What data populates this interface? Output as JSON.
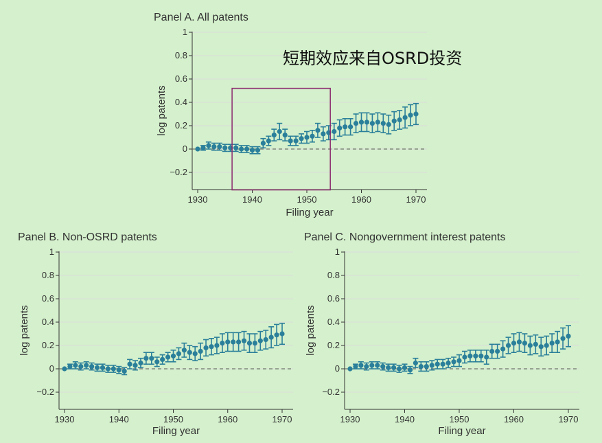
{
  "annotation": {
    "text": "短期效应来自OSRD投资"
  },
  "colors": {
    "marker": "#2a7f9a",
    "background": "#d4f0cc",
    "highlight": "#8b2a6e",
    "grid": "#dcdcdc",
    "refline": "#555555"
  },
  "chart_data": [
    {
      "type": "scatter",
      "title": "Panel A. All patents",
      "xlabel": "Filing year",
      "ylabel": "log patents",
      "xlim": [
        1930,
        1970
      ],
      "ylim": [
        -0.2,
        1
      ],
      "xticks": [
        1930,
        1940,
        1950,
        1960,
        1970
      ],
      "yticks": [
        -0.2,
        0,
        0.2,
        0.4,
        0.6,
        0.8,
        1
      ],
      "ytick_labels": [
        "−0.2",
        "0",
        "0.2",
        "0.4",
        "0.6",
        "0.8",
        "1"
      ],
      "reference_line_y": 0,
      "grid": true,
      "highlight_box": {
        "x_range": [
          1936.3,
          1954.3
        ],
        "y_range": [
          -0.35,
          0.52
        ]
      },
      "x": [
        1930,
        1931,
        1932,
        1933,
        1934,
        1935,
        1936,
        1937,
        1938,
        1939,
        1940,
        1941,
        1942,
        1943,
        1944,
        1945,
        1946,
        1947,
        1948,
        1949,
        1950,
        1951,
        1952,
        1953,
        1954,
        1955,
        1956,
        1957,
        1958,
        1959,
        1960,
        1961,
        1962,
        1963,
        1964,
        1965,
        1966,
        1967,
        1968,
        1969,
        1970
      ],
      "y": [
        0,
        0.01,
        0.03,
        0.02,
        0.02,
        0.01,
        0.01,
        0.01,
        0,
        0,
        -0.01,
        -0.01,
        0.05,
        0.07,
        0.12,
        0.15,
        0.12,
        0.07,
        0.07,
        0.09,
        0.1,
        0.11,
        0.16,
        0.13,
        0.14,
        0.15,
        0.18,
        0.19,
        0.19,
        0.22,
        0.23,
        0.23,
        0.22,
        0.23,
        0.22,
        0.21,
        0.24,
        0.25,
        0.27,
        0.29,
        0.3
      ],
      "err": [
        0,
        0.02,
        0.03,
        0.03,
        0.03,
        0.03,
        0.03,
        0.03,
        0.03,
        0.03,
        0.03,
        0.03,
        0.04,
        0.04,
        0.05,
        0.07,
        0.05,
        0.04,
        0.04,
        0.04,
        0.05,
        0.05,
        0.06,
        0.06,
        0.06,
        0.07,
        0.07,
        0.07,
        0.07,
        0.08,
        0.08,
        0.08,
        0.08,
        0.08,
        0.08,
        0.08,
        0.08,
        0.08,
        0.09,
        0.09,
        0.09
      ]
    },
    {
      "type": "scatter",
      "title": "Panel B. Non-OSRD patents",
      "xlabel": "Filing year",
      "ylabel": "log patents",
      "xlim": [
        1930,
        1970
      ],
      "ylim": [
        -0.2,
        1
      ],
      "xticks": [
        1930,
        1940,
        1950,
        1960,
        1970
      ],
      "yticks": [
        -0.2,
        0,
        0.2,
        0.4,
        0.6,
        0.8,
        1
      ],
      "ytick_labels": [
        "−0.2",
        "0",
        "0.2",
        "0.4",
        "0.6",
        "0.8",
        "1"
      ],
      "reference_line_y": 0,
      "grid": true,
      "x": [
        1930,
        1931,
        1932,
        1933,
        1934,
        1935,
        1936,
        1937,
        1938,
        1939,
        1940,
        1941,
        1942,
        1943,
        1944,
        1945,
        1946,
        1947,
        1948,
        1949,
        1950,
        1951,
        1952,
        1953,
        1954,
        1955,
        1956,
        1957,
        1958,
        1959,
        1960,
        1961,
        1962,
        1963,
        1964,
        1965,
        1966,
        1967,
        1968,
        1969,
        1970
      ],
      "y": [
        0,
        0.02,
        0.03,
        0.02,
        0.03,
        0.02,
        0.01,
        0.01,
        0,
        0,
        -0.01,
        -0.02,
        0.04,
        0.03,
        0.05,
        0.09,
        0.09,
        0.06,
        0.08,
        0.1,
        0.11,
        0.13,
        0.16,
        0.14,
        0.13,
        0.15,
        0.18,
        0.19,
        0.2,
        0.22,
        0.23,
        0.23,
        0.23,
        0.24,
        0.22,
        0.22,
        0.24,
        0.25,
        0.27,
        0.29,
        0.3
      ],
      "err": [
        0,
        0.02,
        0.03,
        0.03,
        0.03,
        0.03,
        0.03,
        0.03,
        0.03,
        0.03,
        0.03,
        0.03,
        0.04,
        0.04,
        0.04,
        0.05,
        0.05,
        0.04,
        0.04,
        0.04,
        0.05,
        0.05,
        0.06,
        0.06,
        0.06,
        0.07,
        0.07,
        0.07,
        0.07,
        0.08,
        0.08,
        0.08,
        0.08,
        0.08,
        0.08,
        0.08,
        0.08,
        0.08,
        0.09,
        0.09,
        0.09
      ]
    },
    {
      "type": "scatter",
      "title": "Panel C. Nongovernment interest patents",
      "xlabel": "Filing year",
      "ylabel": "log patents",
      "xlim": [
        1930,
        1970
      ],
      "ylim": [
        -0.2,
        1
      ],
      "xticks": [
        1930,
        1940,
        1950,
        1960,
        1970
      ],
      "yticks": [
        -0.2,
        0,
        0.2,
        0.4,
        0.6,
        0.8,
        1
      ],
      "ytick_labels": [
        "−0.2",
        "0",
        "0.2",
        "0.4",
        "0.6",
        "0.8",
        "1"
      ],
      "reference_line_y": 0,
      "grid": true,
      "x": [
        1930,
        1931,
        1932,
        1933,
        1934,
        1935,
        1936,
        1937,
        1938,
        1939,
        1940,
        1941,
        1942,
        1943,
        1944,
        1945,
        1946,
        1947,
        1948,
        1949,
        1950,
        1951,
        1952,
        1953,
        1954,
        1955,
        1956,
        1957,
        1958,
        1959,
        1960,
        1961,
        1962,
        1963,
        1964,
        1965,
        1966,
        1967,
        1968,
        1969,
        1970
      ],
      "y": [
        0,
        0.02,
        0.03,
        0.02,
        0.03,
        0.03,
        0.02,
        0.01,
        0.01,
        0,
        0.01,
        -0.01,
        0.05,
        0.02,
        0.02,
        0.03,
        0.04,
        0.04,
        0.05,
        0.06,
        0.07,
        0.1,
        0.11,
        0.11,
        0.11,
        0.1,
        0.15,
        0.15,
        0.17,
        0.2,
        0.22,
        0.23,
        0.22,
        0.2,
        0.21,
        0.19,
        0.2,
        0.22,
        0.23,
        0.26,
        0.28
      ],
      "err": [
        0,
        0.02,
        0.03,
        0.03,
        0.03,
        0.03,
        0.03,
        0.03,
        0.03,
        0.03,
        0.03,
        0.03,
        0.04,
        0.04,
        0.04,
        0.04,
        0.04,
        0.04,
        0.04,
        0.04,
        0.05,
        0.05,
        0.05,
        0.05,
        0.05,
        0.06,
        0.06,
        0.06,
        0.07,
        0.07,
        0.08,
        0.08,
        0.08,
        0.08,
        0.08,
        0.08,
        0.08,
        0.08,
        0.09,
        0.09,
        0.09
      ]
    }
  ]
}
